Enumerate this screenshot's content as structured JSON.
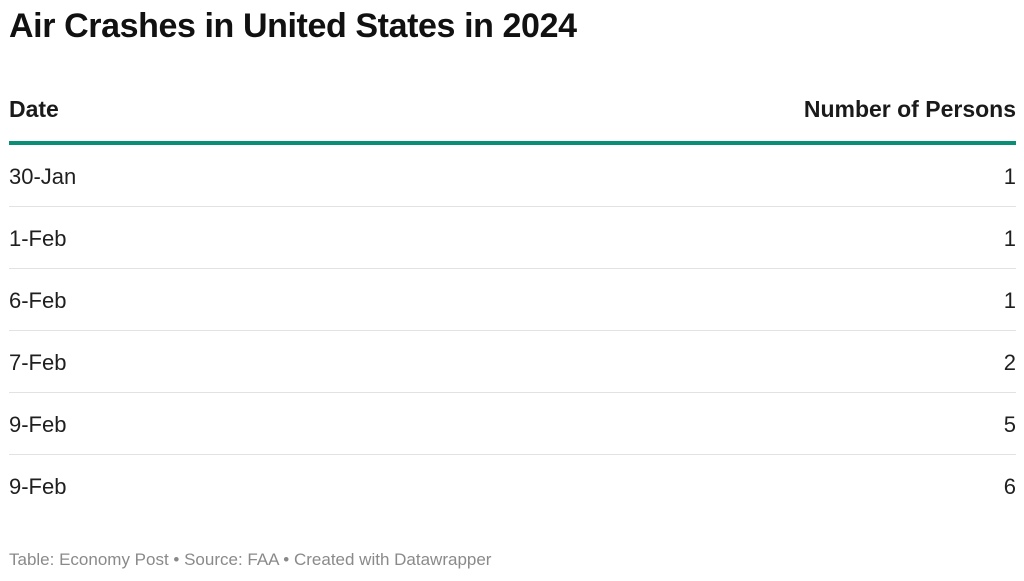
{
  "chart_data": {
    "type": "table",
    "title": "Air Crashes in United States in 2024",
    "columns": [
      "Date",
      "Number of Persons"
    ],
    "rows": [
      {
        "date": "30-Jan",
        "persons": "1"
      },
      {
        "date": "1-Feb",
        "persons": "1"
      },
      {
        "date": "6-Feb",
        "persons": "1"
      },
      {
        "date": "7-Feb",
        "persons": "2"
      },
      {
        "date": "9-Feb",
        "persons": "5"
      },
      {
        "date": "9-Feb",
        "persons": "6"
      }
    ]
  },
  "footer": {
    "text": "Table: Economy Post • Source: FAA • Created with Datawrapper"
  },
  "colors": {
    "accent_rule": "#0a8f76"
  }
}
